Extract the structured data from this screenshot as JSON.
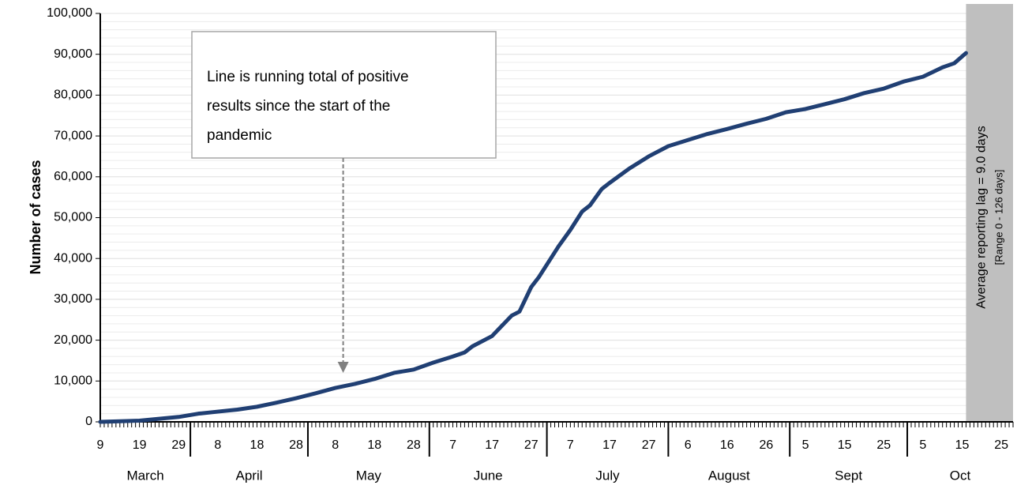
{
  "chart_data": {
    "type": "line",
    "y_label": "Number of cases",
    "x": [
      0,
      10,
      20,
      25,
      30,
      35,
      40,
      45,
      50,
      55,
      60,
      65,
      70,
      75,
      80,
      85,
      90,
      93,
      95,
      100,
      103,
      105,
      107,
      110,
      112,
      115,
      117,
      120,
      123,
      125,
      128,
      130,
      135,
      140,
      145,
      150,
      155,
      160,
      165,
      170,
      175,
      180,
      185,
      190,
      195,
      200,
      205,
      210,
      215,
      218,
      221
    ],
    "series": [
      {
        "name": "Running total of positive results",
        "color": "#203f73",
        "values": [
          0,
          300,
          1200,
          2000,
          2500,
          3000,
          3700,
          4700,
          5800,
          7000,
          8300,
          9300,
          10500,
          12000,
          12800,
          14500,
          16000,
          17000,
          18500,
          21000,
          24000,
          26000,
          27000,
          33000,
          35500,
          40000,
          43000,
          47000,
          51500,
          53000,
          57000,
          58500,
          62000,
          65000,
          67500,
          69000,
          70500,
          71700,
          73000,
          74200,
          75800,
          76600,
          77800,
          79000,
          80500,
          81600,
          83300,
          84500,
          86800,
          87800,
          90300
        ]
      }
    ],
    "xlim": [
      0,
      233
    ],
    "xticks": [
      {
        "value": 0,
        "label": "9"
      },
      {
        "value": 10,
        "label": "19"
      },
      {
        "value": 20,
        "label": "29"
      },
      {
        "value": 30,
        "label": "8"
      },
      {
        "value": 40,
        "label": "18"
      },
      {
        "value": 50,
        "label": "28"
      },
      {
        "value": 60,
        "label": "8"
      },
      {
        "value": 70,
        "label": "18"
      },
      {
        "value": 80,
        "label": "28"
      },
      {
        "value": 90,
        "label": "7"
      },
      {
        "value": 100,
        "label": "17"
      },
      {
        "value": 110,
        "label": "27"
      },
      {
        "value": 120,
        "label": "7"
      },
      {
        "value": 130,
        "label": "17"
      },
      {
        "value": 140,
        "label": "27"
      },
      {
        "value": 150,
        "label": "6"
      },
      {
        "value": 160,
        "label": "16"
      },
      {
        "value": 170,
        "label": "26"
      },
      {
        "value": 180,
        "label": "5"
      },
      {
        "value": 190,
        "label": "15"
      },
      {
        "value": 200,
        "label": "25"
      },
      {
        "value": 210,
        "label": "5"
      },
      {
        "value": 220,
        "label": "15"
      },
      {
        "value": 230,
        "label": "25"
      }
    ],
    "months": [
      {
        "label": "March",
        "start": -8
      },
      {
        "label": "April",
        "start": 23
      },
      {
        "label": "May",
        "start": 53
      },
      {
        "label": "June",
        "start": 84
      },
      {
        "label": "July",
        "start": 114
      },
      {
        "label": "August",
        "start": 145
      },
      {
        "label": "Sept",
        "start": 176
      },
      {
        "label": "Oct",
        "start": 206
      }
    ],
    "ylim": [
      0,
      100000
    ],
    "yticks": [
      0,
      {
        "value": 10000,
        "label": "10,000"
      },
      {
        "value": 20000,
        "label": "20,000"
      },
      {
        "value": 30000,
        "label": "30,000"
      },
      {
        "value": 40000,
        "label": "40,000"
      },
      {
        "value": 50000,
        "label": "50,000"
      },
      {
        "value": 60000,
        "label": "60,000"
      },
      {
        "value": 70000,
        "label": "70,000"
      },
      {
        "value": 80000,
        "label": "80,000"
      },
      {
        "value": 90000,
        "label": "90,000"
      },
      {
        "value": 100000,
        "label": "100,000"
      }
    ],
    "grid": true,
    "ygrid_minor_step": 2000,
    "shade": {
      "xstart": 221,
      "color": "#bfbfbf",
      "text": "Average reporting lag = 9.0 days",
      "subtext": "[Range 0 - 126 days]"
    },
    "annotation": {
      "lines": [
        "Line is running total of positive",
        "results since the start of the",
        "pandemic"
      ],
      "arrow_x": 62,
      "arrow_y": 12000
    }
  }
}
